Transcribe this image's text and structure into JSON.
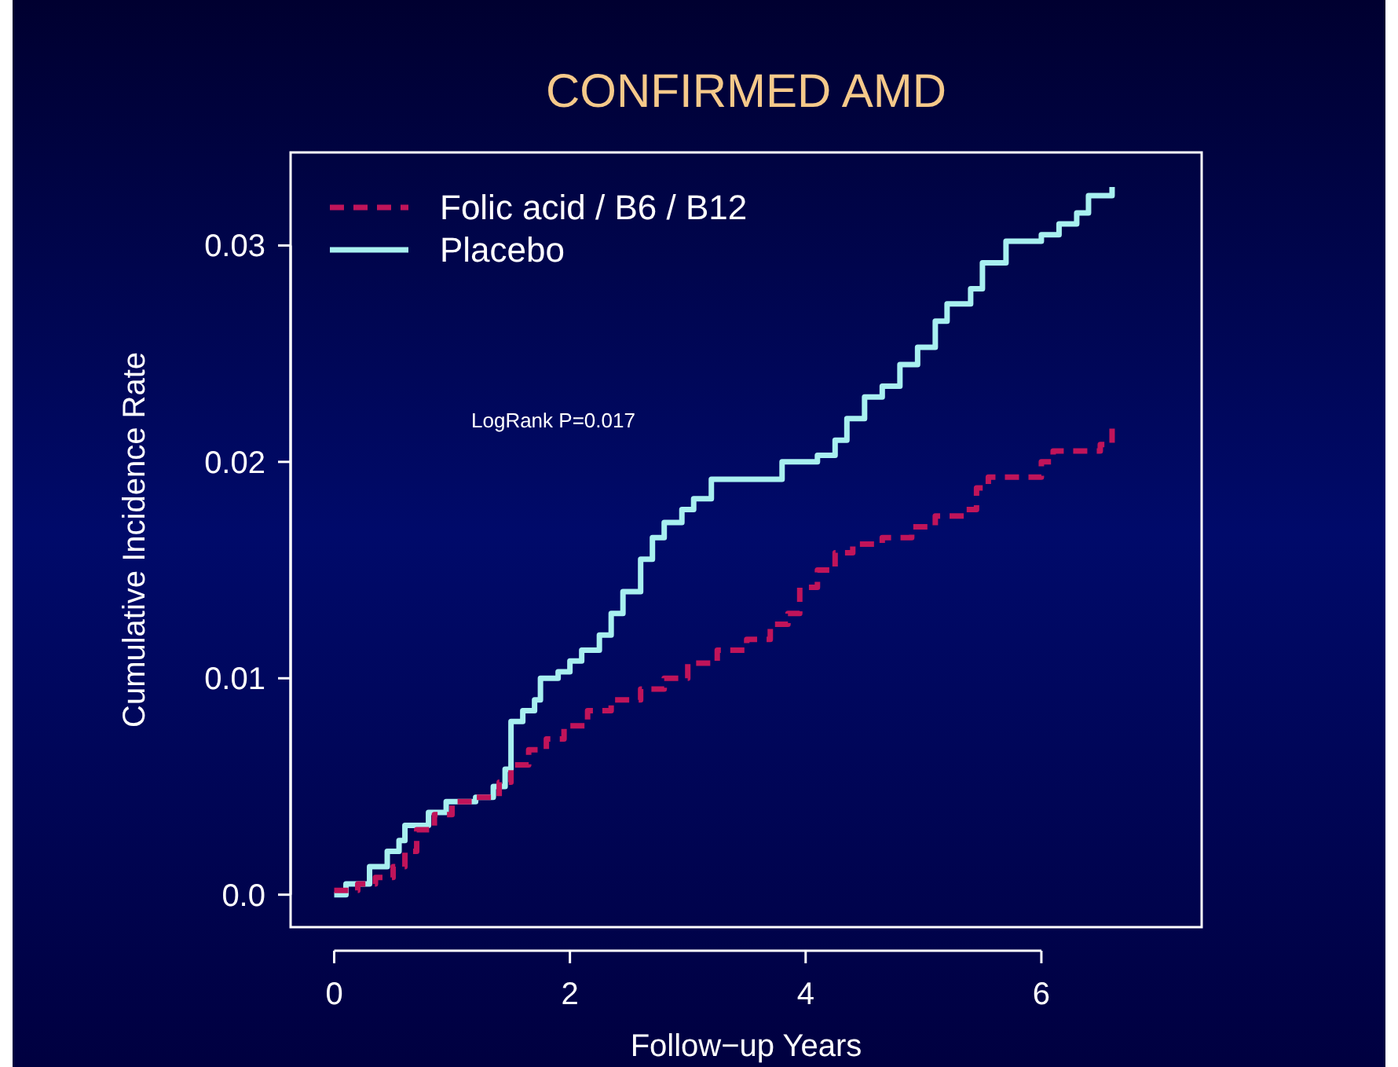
{
  "chart_data": {
    "type": "step",
    "title": "CONFIRMED AMD",
    "xlabel": "Follow−up Years",
    "ylabel": "Cumulative Incidence Rate",
    "annotations": [
      "LogRank P=0.017"
    ],
    "xlim": [
      -0.37,
      7.36
    ],
    "xticks": [
      0,
      2,
      4,
      6
    ],
    "ylim": [
      -0.0015,
      0.0343
    ],
    "yticks": [
      {
        "value": 0,
        "label": "0.0"
      },
      {
        "value": 0.01,
        "label": "0.01"
      },
      {
        "value": 0.02,
        "label": "0.02"
      },
      {
        "value": 0.03,
        "label": "0.03"
      }
    ],
    "grid": false,
    "legend": "top left",
    "marker": "none",
    "series": [
      {
        "name": "Folic acid / B6 / B12",
        "color": "#c0145a",
        "line_style": "dashed",
        "x": [
          0,
          0.2,
          0.35,
          0.5,
          0.6,
          0.7,
          0.85,
          1.0,
          1.2,
          1.4,
          1.5,
          1.65,
          1.8,
          1.95,
          2.15,
          2.35,
          2.6,
          2.8,
          3.0,
          3.25,
          3.5,
          3.7,
          3.85,
          3.95,
          4.1,
          4.25,
          4.4,
          4.65,
          4.9,
          5.1,
          5.35,
          5.45,
          5.55,
          6.0,
          6.1,
          6.5,
          6.6
        ],
        "values": [
          0.0002,
          0.0005,
          0.0008,
          0.0013,
          0.002,
          0.003,
          0.0037,
          0.0043,
          0.0045,
          0.0052,
          0.006,
          0.0067,
          0.0072,
          0.0078,
          0.0085,
          0.009,
          0.0095,
          0.01,
          0.0107,
          0.0113,
          0.0118,
          0.0125,
          0.013,
          0.0142,
          0.015,
          0.0158,
          0.0162,
          0.0165,
          0.017,
          0.0175,
          0.0178,
          0.0188,
          0.0193,
          0.02,
          0.0205,
          0.0208,
          0.0218
        ]
      },
      {
        "name": "Placebo",
        "color": "#a8f0f0",
        "line_style": "solid",
        "x": [
          0,
          0.1,
          0.3,
          0.45,
          0.55,
          0.6,
          0.8,
          0.95,
          1.2,
          1.35,
          1.45,
          1.5,
          1.6,
          1.7,
          1.75,
          1.9,
          2.0,
          2.1,
          2.25,
          2.35,
          2.45,
          2.6,
          2.7,
          2.8,
          2.95,
          3.05,
          3.2,
          3.8,
          4.1,
          4.25,
          4.35,
          4.5,
          4.65,
          4.8,
          4.95,
          5.1,
          5.2,
          5.4,
          5.5,
          5.7,
          6.0,
          6.15,
          6.3,
          6.4,
          6.6
        ],
        "values": [
          0,
          0.0005,
          0.0013,
          0.002,
          0.0025,
          0.0032,
          0.0038,
          0.0043,
          0.0045,
          0.005,
          0.0058,
          0.008,
          0.0085,
          0.009,
          0.01,
          0.0103,
          0.0108,
          0.0113,
          0.012,
          0.013,
          0.014,
          0.0155,
          0.0165,
          0.0172,
          0.0178,
          0.0183,
          0.0192,
          0.02,
          0.0203,
          0.021,
          0.022,
          0.023,
          0.0235,
          0.0245,
          0.0253,
          0.0265,
          0.0273,
          0.028,
          0.0292,
          0.0302,
          0.0305,
          0.031,
          0.0315,
          0.0323,
          0.0327
        ]
      }
    ]
  }
}
